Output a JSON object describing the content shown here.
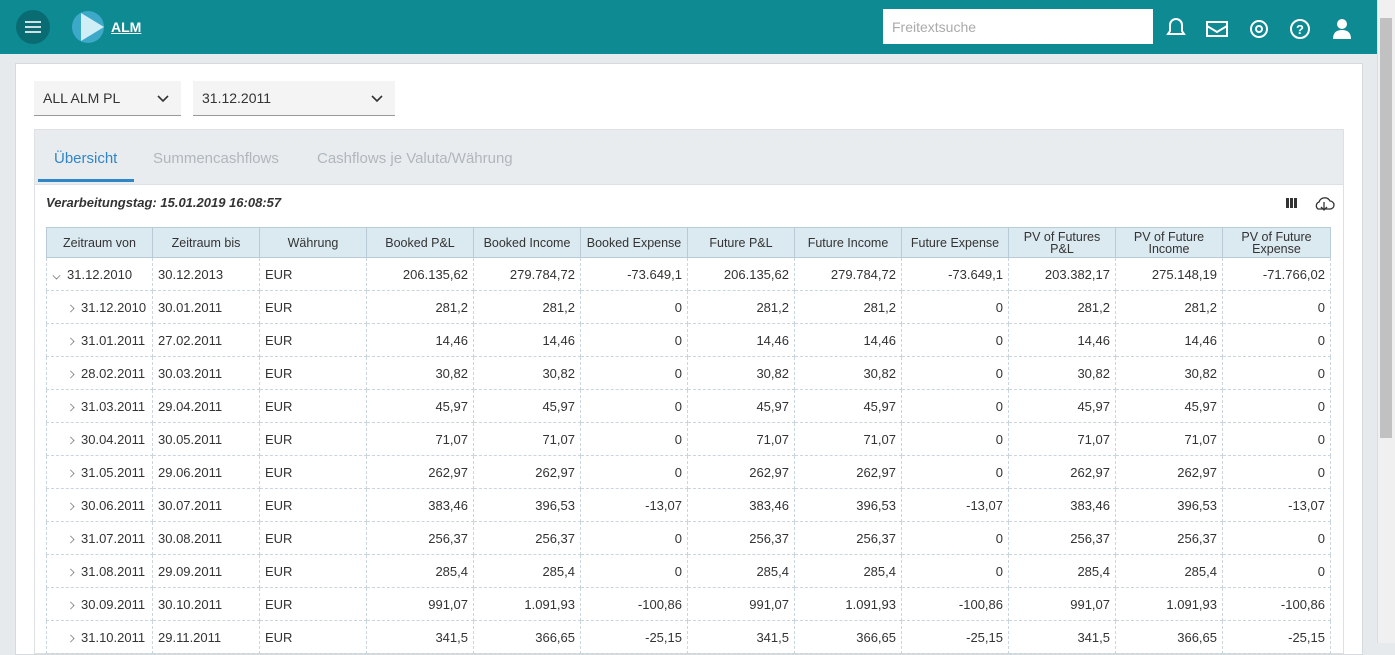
{
  "header": {
    "app_name": "ALM",
    "search_placeholder": "Freitextsuche"
  },
  "filters": {
    "portfolio": "ALL ALM PL",
    "date": "31.12.2011"
  },
  "tabs": [
    "Übersicht",
    "Summencashflows",
    "Cashflows je Valuta/Währung"
  ],
  "processing_day": "Verarbeitungstag: 15.01.2019 16:08:57",
  "table": {
    "columns": [
      "Zeitraum von",
      "Zeitraum bis",
      "Währung",
      "Booked P&L",
      "Booked Income",
      "Booked Expense",
      "Future P&L",
      "Future Income",
      "Future Expense",
      "PV of Futures P&L",
      "PV of Future Income",
      "PV of Future Expense"
    ],
    "rows": [
      [
        "31.12.2010",
        "30.12.2013",
        "EUR",
        "206.135,62",
        "279.784,72",
        "-73.649,1",
        "206.135,62",
        "279.784,72",
        "-73.649,1",
        "203.382,17",
        "275.148,19",
        "-71.766,02"
      ],
      [
        "31.12.2010",
        "30.01.2011",
        "EUR",
        "281,2",
        "281,2",
        "0",
        "281,2",
        "281,2",
        "0",
        "281,2",
        "281,2",
        "0"
      ],
      [
        "31.01.2011",
        "27.02.2011",
        "EUR",
        "14,46",
        "14,46",
        "0",
        "14,46",
        "14,46",
        "0",
        "14,46",
        "14,46",
        "0"
      ],
      [
        "28.02.2011",
        "30.03.2011",
        "EUR",
        "30,82",
        "30,82",
        "0",
        "30,82",
        "30,82",
        "0",
        "30,82",
        "30,82",
        "0"
      ],
      [
        "31.03.2011",
        "29.04.2011",
        "EUR",
        "45,97",
        "45,97",
        "0",
        "45,97",
        "45,97",
        "0",
        "45,97",
        "45,97",
        "0"
      ],
      [
        "30.04.2011",
        "30.05.2011",
        "EUR",
        "71,07",
        "71,07",
        "0",
        "71,07",
        "71,07",
        "0",
        "71,07",
        "71,07",
        "0"
      ],
      [
        "31.05.2011",
        "29.06.2011",
        "EUR",
        "262,97",
        "262,97",
        "0",
        "262,97",
        "262,97",
        "0",
        "262,97",
        "262,97",
        "0"
      ],
      [
        "30.06.2011",
        "30.07.2011",
        "EUR",
        "383,46",
        "396,53",
        "-13,07",
        "383,46",
        "396,53",
        "-13,07",
        "383,46",
        "396,53",
        "-13,07"
      ],
      [
        "31.07.2011",
        "30.08.2011",
        "EUR",
        "256,37",
        "256,37",
        "0",
        "256,37",
        "256,37",
        "0",
        "256,37",
        "256,37",
        "0"
      ],
      [
        "31.08.2011",
        "29.09.2011",
        "EUR",
        "285,4",
        "285,4",
        "0",
        "285,4",
        "285,4",
        "0",
        "285,4",
        "285,4",
        "0"
      ],
      [
        "30.09.2011",
        "30.10.2011",
        "EUR",
        "991,07",
        "1.091,93",
        "-100,86",
        "991,07",
        "1.091,93",
        "-100,86",
        "991,07",
        "1.091,93",
        "-100,86"
      ],
      [
        "31.10.2011",
        "29.11.2011",
        "EUR",
        "341,5",
        "366,65",
        "-25,15",
        "341,5",
        "366,65",
        "-25,15",
        "341,5",
        "366,65",
        "-25,15"
      ]
    ]
  }
}
